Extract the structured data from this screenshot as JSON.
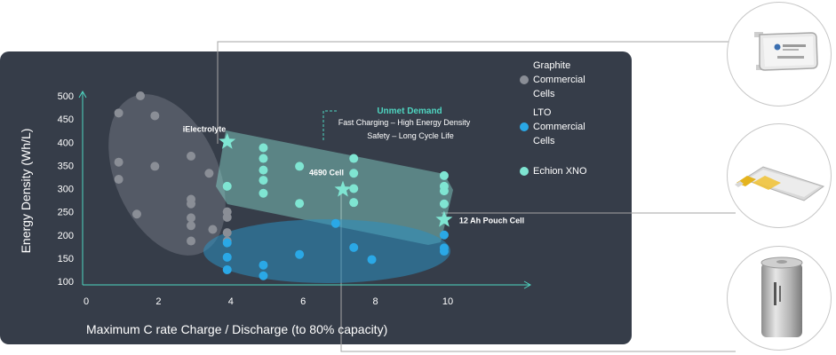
{
  "chart_data": {
    "type": "scatter",
    "xlabel": "Maximum C rate Charge / Discharge (to 80% capacity)",
    "ylabel": "Energy Density (Wh/L)",
    "xlim": [
      0,
      12.4
    ],
    "ylim": [
      100,
      500
    ],
    "x_ticks": [
      "0",
      "2",
      "4",
      "6",
      "8",
      "10"
    ],
    "y_ticks": [
      "100",
      "150",
      "200",
      "250",
      "300",
      "350",
      "400",
      "450",
      "500"
    ],
    "grid": false,
    "legend_position": "right",
    "series": [
      {
        "name": "Graphite Commercial Cells",
        "color": "#8a8e96",
        "points": [
          [
            1.5,
            500
          ],
          [
            0.9,
            463
          ],
          [
            1.9,
            457
          ],
          [
            0.9,
            357
          ],
          [
            1.9,
            348
          ],
          [
            0.9,
            320
          ],
          [
            2.9,
            370
          ],
          [
            3.4,
            333
          ],
          [
            2.9,
            277
          ],
          [
            2.9,
            267
          ],
          [
            2.9,
            237
          ],
          [
            2.9,
            220
          ],
          [
            2.9,
            187
          ],
          [
            1.4,
            245
          ],
          [
            3.5,
            212
          ],
          [
            3.9,
            250
          ],
          [
            3.9,
            238
          ],
          [
            3.9,
            205
          ],
          [
            3.9,
            187
          ]
        ]
      },
      {
        "name": "LTO Commercial Cells",
        "color": "#2aa8e6",
        "points": [
          [
            3.9,
            183
          ],
          [
            3.9,
            152
          ],
          [
            3.9,
            125
          ],
          [
            4.9,
            135
          ],
          [
            4.9,
            112
          ],
          [
            5.9,
            158
          ],
          [
            6.9,
            225
          ],
          [
            7.4,
            173
          ],
          [
            7.9,
            147
          ],
          [
            9.9,
            200
          ],
          [
            9.9,
            172
          ],
          [
            9.9,
            165
          ]
        ]
      },
      {
        "name": "Echion XNO",
        "color": "#7fe5d2",
        "points": [
          [
            3.9,
            305
          ],
          [
            4.9,
            388
          ],
          [
            4.9,
            365
          ],
          [
            4.9,
            340
          ],
          [
            4.9,
            318
          ],
          [
            4.9,
            290
          ],
          [
            5.9,
            348
          ],
          [
            5.9,
            268
          ],
          [
            7.4,
            365
          ],
          [
            7.4,
            333
          ],
          [
            7.4,
            300
          ],
          [
            7.4,
            270
          ],
          [
            9.9,
            328
          ],
          [
            9.9,
            305
          ],
          [
            9.9,
            295
          ],
          [
            9.9,
            267
          ]
        ]
      }
    ],
    "stars": [
      {
        "label": "iElectrolyte",
        "x": 3.9,
        "y": 401
      },
      {
        "label": "4690 Cell",
        "x": 7.1,
        "y": 298
      },
      {
        "label": "12 Ah Pouch Cell",
        "x": 9.9,
        "y": 233
      }
    ],
    "annotation": {
      "title": "Unmet Demand",
      "line1": "Fast Charging – High Energy Density",
      "line2": "Safety – Long Cycle Life"
    },
    "legend": [
      {
        "series": "Graphite Commercial Cells",
        "lines": [
          "Graphite",
          "Commercial",
          "Cells"
        ]
      },
      {
        "series": "LTO Commercial Cells",
        "lines": [
          "LTO",
          "Commercial",
          "Cells"
        ]
      },
      {
        "series": "Echion XNO",
        "lines": [
          "Echion XNO"
        ]
      }
    ],
    "regions": [
      {
        "name": "graphite-region",
        "color": "#9aa0a8"
      },
      {
        "name": "echion-region",
        "color": "#8ee8d8"
      },
      {
        "name": "lto-region",
        "color": "#2b8fc0"
      }
    ],
    "colors": {
      "panel": "#363d49",
      "axis": "#4fd6c1",
      "text": "#ffffff",
      "unmet_demand": "#4fd6c1",
      "star": "#7fe5d2",
      "connector": "#a5a5a5"
    }
  }
}
